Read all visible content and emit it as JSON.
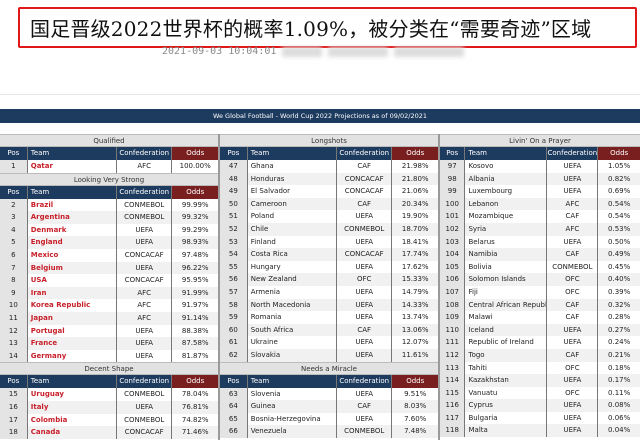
{
  "headline": "国足晋级2022世界杯的概率1.09%，被分类在“需要奇迹”区域",
  "timestamp": "2021-09-03 10:04:01",
  "banner": "We Global Football - World Cup 2022 Projections as of 09/02/2021",
  "columns": {
    "pos": "Pos",
    "team": "Team",
    "confederation": "Confederation",
    "odds": "Odds"
  },
  "colors": {
    "navy": "#1d3a5f",
    "odds_header": "#7a1f1f",
    "highlight_team": "#c8202a",
    "frame": "#e01818"
  },
  "panels": [
    {
      "sections": [
        {
          "title": "Qualified",
          "highlight": true,
          "rows": [
            [
              "1",
              "Qatar",
              "AFC",
              "100.00%"
            ]
          ]
        },
        {
          "title": "Looking Very Strong",
          "highlight": true,
          "rows": [
            [
              "2",
              "Brazil",
              "CONMEBOL",
              "99.99%"
            ],
            [
              "3",
              "Argentina",
              "CONMEBOL",
              "99.32%"
            ],
            [
              "4",
              "Denmark",
              "UEFA",
              "99.29%"
            ],
            [
              "5",
              "England",
              "UEFA",
              "98.93%"
            ],
            [
              "6",
              "Mexico",
              "CONCACAF",
              "97.48%"
            ],
            [
              "7",
              "Belgium",
              "UEFA",
              "96.22%"
            ],
            [
              "8",
              "USA",
              "CONCACAF",
              "95.95%"
            ],
            [
              "9",
              "Iran",
              "AFC",
              "91.99%"
            ],
            [
              "10",
              "Korea Republic",
              "AFC",
              "91.97%"
            ],
            [
              "11",
              "Japan",
              "AFC",
              "91.14%"
            ],
            [
              "12",
              "Portugal",
              "UEFA",
              "88.38%"
            ],
            [
              "13",
              "France",
              "UEFA",
              "87.58%"
            ],
            [
              "14",
              "Germany",
              "UEFA",
              "81.87%"
            ]
          ]
        },
        {
          "title": "Decent Shape",
          "highlight": true,
          "rows": [
            [
              "15",
              "Uruguay",
              "CONMEBOL",
              "78.04%"
            ],
            [
              "16",
              "Italy",
              "UEFA",
              "76.81%"
            ],
            [
              "17",
              "Colombia",
              "CONMEBOL",
              "74.82%"
            ],
            [
              "18",
              "Canada",
              "CONCACAF",
              "71.46%"
            ]
          ]
        }
      ]
    },
    {
      "sections": [
        {
          "title": "Longshots",
          "highlight": false,
          "rows": [
            [
              "47",
              "Ghana",
              "CAF",
              "21.98%"
            ],
            [
              "48",
              "Honduras",
              "CONCACAF",
              "21.80%"
            ],
            [
              "49",
              "El Salvador",
              "CONCACAF",
              "21.06%"
            ],
            [
              "50",
              "Cameroon",
              "CAF",
              "20.34%"
            ],
            [
              "51",
              "Poland",
              "UEFA",
              "19.90%"
            ],
            [
              "52",
              "Chile",
              "CONMEBOL",
              "18.70%"
            ],
            [
              "53",
              "Finland",
              "UEFA",
              "18.41%"
            ],
            [
              "54",
              "Costa Rica",
              "CONCACAF",
              "17.74%"
            ],
            [
              "55",
              "Hungary",
              "UEFA",
              "17.62%"
            ],
            [
              "56",
              "New Zealand",
              "OFC",
              "15.33%"
            ],
            [
              "57",
              "Armenia",
              "UEFA",
              "14.79%"
            ],
            [
              "58",
              "North Macedonia",
              "UEFA",
              "14.33%"
            ],
            [
              "59",
              "Romania",
              "UEFA",
              "13.74%"
            ],
            [
              "60",
              "South Africa",
              "CAF",
              "13.06%"
            ],
            [
              "61",
              "Ukraine",
              "UEFA",
              "12.07%"
            ],
            [
              "62",
              "Slovakia",
              "UEFA",
              "11.61%"
            ]
          ]
        },
        {
          "title": "Needs a Miracle",
          "highlight": false,
          "rows": [
            [
              "63",
              "Slovenia",
              "UEFA",
              "9.51%"
            ],
            [
              "64",
              "Guinea",
              "CAF",
              "8.03%"
            ],
            [
              "65",
              "Bosnia-Herzegovina",
              "UEFA",
              "7.60%"
            ],
            [
              "66",
              "Venezuela",
              "CONMEBOL",
              "7.48%"
            ]
          ]
        }
      ]
    },
    {
      "sections": [
        {
          "title": "Livin' On a Prayer",
          "highlight": false,
          "rows": [
            [
              "97",
              "Kosovo",
              "UEFA",
              "1.05%"
            ],
            [
              "98",
              "Albania",
              "UEFA",
              "0.82%"
            ],
            [
              "99",
              "Luxembourg",
              "UEFA",
              "0.69%"
            ],
            [
              "100",
              "Lebanon",
              "AFC",
              "0.54%"
            ],
            [
              "101",
              "Mozambique",
              "CAF",
              "0.54%"
            ],
            [
              "102",
              "Syria",
              "AFC",
              "0.53%"
            ],
            [
              "103",
              "Belarus",
              "UEFA",
              "0.50%"
            ],
            [
              "104",
              "Namibia",
              "CAF",
              "0.49%"
            ],
            [
              "105",
              "Bolivia",
              "CONMEBOL",
              "0.45%"
            ],
            [
              "106",
              "Solomon Islands",
              "OFC",
              "0.40%"
            ],
            [
              "107",
              "Fiji",
              "OFC",
              "0.39%"
            ],
            [
              "108",
              "Central African Republic",
              "CAF",
              "0.32%"
            ],
            [
              "109",
              "Malawi",
              "CAF",
              "0.28%"
            ],
            [
              "110",
              "Iceland",
              "UEFA",
              "0.27%"
            ],
            [
              "111",
              "Republic of Ireland",
              "UEFA",
              "0.24%"
            ],
            [
              "112",
              "Togo",
              "CAF",
              "0.21%"
            ],
            [
              "113",
              "Tahiti",
              "OFC",
              "0.18%"
            ],
            [
              "114",
              "Kazakhstan",
              "UEFA",
              "0.17%"
            ],
            [
              "115",
              "Vanuatu",
              "OFC",
              "0.11%"
            ],
            [
              "116",
              "Cyprus",
              "UEFA",
              "0.08%"
            ],
            [
              "117",
              "Bulgaria",
              "UEFA",
              "0.06%"
            ],
            [
              "118",
              "Malta",
              "UEFA",
              "0.04%"
            ]
          ]
        }
      ]
    }
  ]
}
